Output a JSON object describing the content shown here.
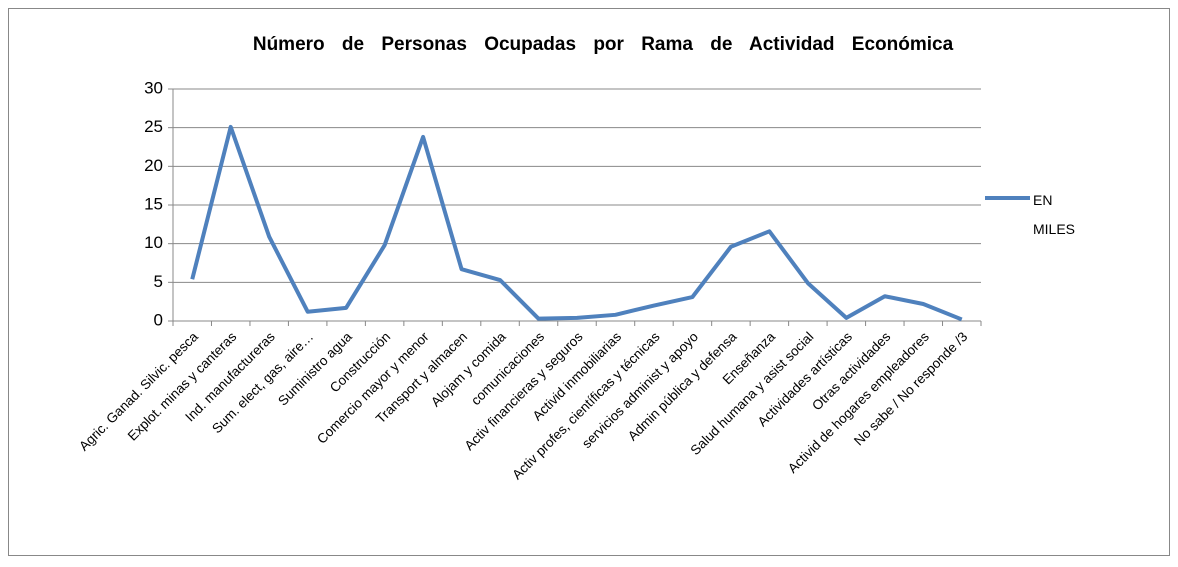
{
  "chart_data": {
    "type": "line",
    "title": "Número de Personas Ocupadas por Rama de Actividad Económica",
    "categories": [
      "Agric. Ganad. Silvic. pesca",
      "Explot. minas y canteras",
      "Ind. manufactureras",
      "Sum. elect, gas, aire…",
      "Suministro agua",
      "Construcción",
      "Comercio mayor y menor",
      "Transport y almacen",
      "Alojam y comida",
      "comunicaciones",
      "Activ financieras y seguros",
      "Activid inmobiliarias",
      "Activ profes, científicas y técnicas",
      "servicios administ y apoyo",
      "Admin pública y defensa",
      "Enseñanza",
      "Salud humana y asist social",
      "Actividades artísticas",
      "Otras actividades",
      "Activid de hogares empleadores",
      "No sabe / No responde /3"
    ],
    "series": [
      {
        "name": "EN MILES",
        "color": "#4f81bd",
        "values": [
          5.4,
          25.1,
          10.9,
          1.2,
          1.7,
          9.8,
          23.8,
          6.7,
          5.3,
          0.3,
          0.4,
          0.8,
          2.0,
          3.1,
          9.6,
          11.6,
          4.9,
          0.4,
          3.2,
          2.2,
          0.2
        ]
      }
    ],
    "ylim": [
      0,
      30
    ],
    "yticks": [
      0,
      5,
      10,
      15,
      20,
      25,
      30
    ],
    "grid": true,
    "legend": "right"
  }
}
